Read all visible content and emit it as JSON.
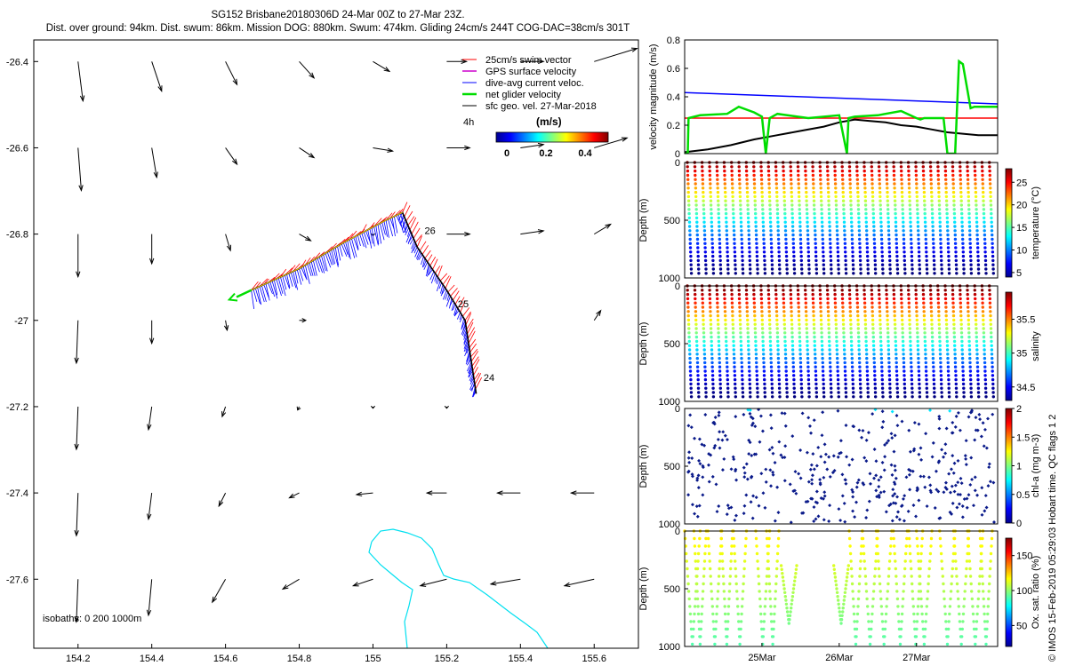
{
  "header": {
    "title": "SG152 Brisbane20180306D 24-Mar 00Z to 27-Mar 23Z.",
    "subtitle": "Dist. over ground: 94km. Dist. swum: 86km. Mission DOG: 880km. Swum: 474km. Gliding 24cm/s 244T COG-DAC=38cm/s 301T"
  },
  "credit": "© IMOS 15-Feb-2019 05:29:03 Hobart time. QC flags 1  2",
  "colors": {
    "swim": "#ff0000",
    "gps": "#cc00cc",
    "dac": "#0000ff",
    "net": "#00dd00",
    "geo": "#000000",
    "isobath": "#00e0f0"
  },
  "chart_data": [
    {
      "type": "vector-map",
      "x_ticks": [
        "154.2",
        "154.4",
        "154.6",
        "154.8",
        "155",
        "155.2",
        "155.4",
        "155.6"
      ],
      "y_ticks": [
        "-26.4",
        "-26.6",
        "-26.8",
        "-27",
        "-27.2",
        "-27.4",
        "-27.6"
      ],
      "xlim": [
        154.08,
        155.72
      ],
      "ylim": [
        -27.76,
        -26.35
      ],
      "legend": {
        "entries": [
          "25cm/s swim vector",
          "GPS surface velocity",
          "dive-avg current veloc.",
          "net glider velocity",
          "sfc geo. vel. 27-Mar-2018"
        ],
        "time_label": "4h",
        "colorbar_title": "(m/s)",
        "colorbar_ticks": [
          "0",
          "0.2",
          "0.4"
        ]
      },
      "day_labels": [
        {
          "text": "26",
          "lon": 155.14,
          "lat": -26.8
        },
        {
          "text": "25",
          "lon": 155.23,
          "lat": -26.97
        },
        {
          "text": "24",
          "lon": 155.3,
          "lat": -27.14
        }
      ],
      "isobath_label": "isobaths: 0   200   1000m",
      "track": [
        [
          154.67,
          -26.93
        ],
        [
          154.8,
          -26.88
        ],
        [
          154.92,
          -26.82
        ],
        [
          155.03,
          -26.77
        ],
        [
          155.08,
          -26.75
        ],
        [
          155.12,
          -26.83
        ],
        [
          155.2,
          -26.93
        ],
        [
          155.25,
          -27.0
        ],
        [
          155.28,
          -27.17
        ]
      ],
      "geo_vectors": {
        "grid_lon": [
          154.2,
          154.4,
          154.6,
          154.8,
          155.0,
          155.2,
          155.4,
          155.6
        ],
        "grid_lat": [
          -26.4,
          -26.6,
          -26.8,
          -27.0,
          -27.2,
          -27.4,
          -27.6
        ],
        "u": [
          [
            0.015,
            0.03,
            0.035,
            0.045,
            0.05,
            0.06,
            0.07,
            0.13
          ],
          [
            0.01,
            0.015,
            0.035,
            0.045,
            0.06,
            0.07,
            0.07,
            0.1
          ],
          [
            0.0,
            0.0,
            0.015,
            0.035,
            0.0,
            0.07,
            0.07,
            0.05
          ],
          [
            -0.005,
            0.0,
            0.005,
            0.02,
            0.0,
            0.0,
            0.0,
            0.02
          ],
          [
            -0.005,
            -0.01,
            -0.01,
            -0.005,
            0.0,
            0.0,
            0.0,
            0.0
          ],
          [
            -0.005,
            -0.01,
            -0.02,
            -0.03,
            -0.05,
            -0.06,
            -0.07,
            -0.07
          ],
          [
            -0.005,
            -0.01,
            -0.04,
            -0.05,
            -0.06,
            -0.08,
            -0.09,
            -0.09
          ]
        ],
        "v": [
          [
            -0.12,
            -0.09,
            -0.07,
            -0.05,
            -0.03,
            0.0,
            0.0,
            0.04
          ],
          [
            -0.13,
            -0.09,
            -0.05,
            -0.03,
            -0.01,
            0.0,
            0.01,
            0.03
          ],
          [
            -0.13,
            -0.09,
            -0.05,
            -0.02,
            -0.005,
            0.0,
            0.01,
            0.03
          ],
          [
            -0.13,
            -0.07,
            -0.03,
            0.0,
            0.0,
            0.0,
            0.0,
            0.03
          ],
          [
            -0.13,
            -0.07,
            -0.03,
            -0.01,
            -0.005,
            -0.005,
            0.0,
            0.0
          ],
          [
            -0.13,
            -0.08,
            -0.04,
            -0.015,
            -0.005,
            0.0,
            0.0,
            0.0
          ],
          [
            -0.13,
            -0.11,
            -0.07,
            -0.03,
            -0.02,
            -0.02,
            -0.015,
            -0.02
          ]
        ]
      }
    },
    {
      "type": "line",
      "ylabel": "velocity magnitude (m/s)",
      "ylim": [
        0,
        0.8
      ],
      "y_ticks": [
        "0",
        "0.2",
        "0.4",
        "0.6",
        "0.8"
      ],
      "xlim": [
        0,
        4.05
      ],
      "series": [
        {
          "name": "blue",
          "color": "#0000ff",
          "x": [
            0,
            4.05
          ],
          "y": [
            0.43,
            0.35
          ]
        },
        {
          "name": "red",
          "color": "#ff0000",
          "x": [
            0,
            4.05
          ],
          "y": [
            0.25,
            0.25
          ]
        },
        {
          "name": "black",
          "color": "#000000",
          "x": [
            0,
            0.3,
            0.6,
            0.9,
            1.2,
            1.5,
            1.8,
            2.0,
            2.2,
            2.4,
            2.6,
            2.8,
            3.0,
            3.2,
            3.4,
            3.6,
            3.8,
            4.05
          ],
          "y": [
            0.01,
            0.03,
            0.06,
            0.1,
            0.13,
            0.16,
            0.19,
            0.22,
            0.24,
            0.23,
            0.22,
            0.2,
            0.19,
            0.17,
            0.15,
            0.14,
            0.13,
            0.13
          ]
        },
        {
          "name": "green",
          "color": "#00dd00",
          "x": [
            0,
            0.04,
            0.05,
            0.2,
            0.55,
            0.7,
            0.9,
            1.0,
            1.05,
            1.1,
            1.2,
            1.6,
            2.0,
            2.1,
            2.12,
            2.2,
            2.5,
            2.8,
            3.0,
            3.05,
            3.1,
            3.35,
            3.4,
            3.5,
            3.55,
            3.6,
            3.7,
            3.75,
            4.05
          ],
          "y": [
            0.0,
            0.0,
            0.25,
            0.27,
            0.28,
            0.33,
            0.29,
            0.26,
            0.0,
            0.25,
            0.28,
            0.25,
            0.27,
            0.0,
            0.25,
            0.26,
            0.27,
            0.3,
            0.25,
            0.24,
            0.25,
            0.25,
            0.0,
            0.0,
            0.65,
            0.63,
            0.32,
            0.33,
            0.33
          ]
        }
      ]
    },
    {
      "type": "scatter",
      "variable": "temperature",
      "ylabel": "Depth (m)",
      "y_ticks": [
        "0",
        "500",
        "1000"
      ],
      "ylim": [
        1000,
        0
      ],
      "colorbar_label": "temperature (°C)",
      "colorbar_ticks": [
        "5",
        "10",
        "15",
        "20",
        "25"
      ],
      "clim": [
        4,
        28
      ],
      "profile_count": 42,
      "max_depth": 960
    },
    {
      "type": "scatter",
      "variable": "salinity",
      "ylabel": "Depth (m)",
      "y_ticks": [
        "0",
        "500",
        "1000"
      ],
      "ylim": [
        1000,
        0
      ],
      "colorbar_label": "salinity",
      "colorbar_ticks": [
        "34.5",
        "35",
        "35.5"
      ],
      "clim": [
        34.3,
        35.9
      ],
      "profile_count": 42,
      "max_depth": 960
    },
    {
      "type": "scatter",
      "variable": "chl-a",
      "ylabel": "Depth (m)",
      "y_ticks": [
        "0",
        "500",
        "1000"
      ],
      "ylim": [
        1000,
        0
      ],
      "colorbar_label": "chl-a (mg m-3)",
      "colorbar_ticks": [
        "0",
        "0.5",
        "1",
        "1.5",
        "2"
      ],
      "clim": [
        0,
        2
      ],
      "max_depth": 1000
    },
    {
      "type": "scatter",
      "variable": "oxygen",
      "ylabel": "Depth (m)",
      "y_ticks": [
        "0",
        "500",
        "1000"
      ],
      "ylim": [
        1000,
        0
      ],
      "colorbar_label": "Ox. sat. ratio (%)",
      "colorbar_ticks": [
        "50",
        "100",
        "150"
      ],
      "clim": [
        20,
        175
      ],
      "x_ticks": [
        "25Mar",
        "26Mar",
        "27Mar"
      ],
      "max_depth": 1000
    }
  ]
}
